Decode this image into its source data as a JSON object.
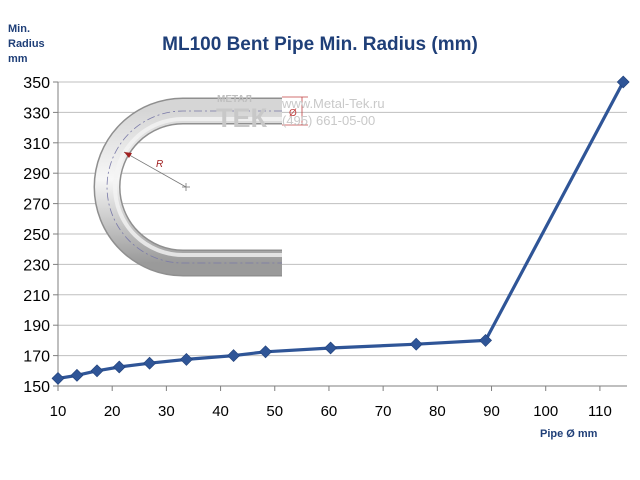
{
  "chart_data": {
    "type": "line",
    "title": "ML100 Bent Pipe Min. Radius (mm)",
    "ylabel": "Min.\nRadius\nmm",
    "xlabel": "Pipe Ø mm",
    "xlim": [
      10,
      115
    ],
    "ylim": [
      150,
      350
    ],
    "xticks": [
      10,
      20,
      30,
      40,
      50,
      60,
      70,
      80,
      90,
      100,
      110
    ],
    "yticks": [
      150,
      170,
      190,
      210,
      230,
      250,
      270,
      290,
      310,
      330,
      350
    ],
    "grid": "horizontal",
    "series": [
      {
        "color": "#2f5597",
        "marker": "diamond",
        "x": [
          10,
          13.5,
          17.2,
          21.3,
          26.9,
          33.7,
          42.4,
          48.3,
          60.3,
          76.1,
          88.9,
          114.3
        ],
        "y": [
          155,
          157,
          160,
          162.5,
          165,
          167.5,
          170,
          172.5,
          175,
          177.5,
          180,
          350
        ]
      }
    ]
  },
  "watermark": {
    "logo_top": "МЕТАЛ",
    "logo_bottom": "ТЕК",
    "site": "www.Metal-Tek.ru",
    "phone": "(495) 661-05-00"
  },
  "illustration": {
    "radius_label": "R",
    "diameter_label": "Ø"
  }
}
